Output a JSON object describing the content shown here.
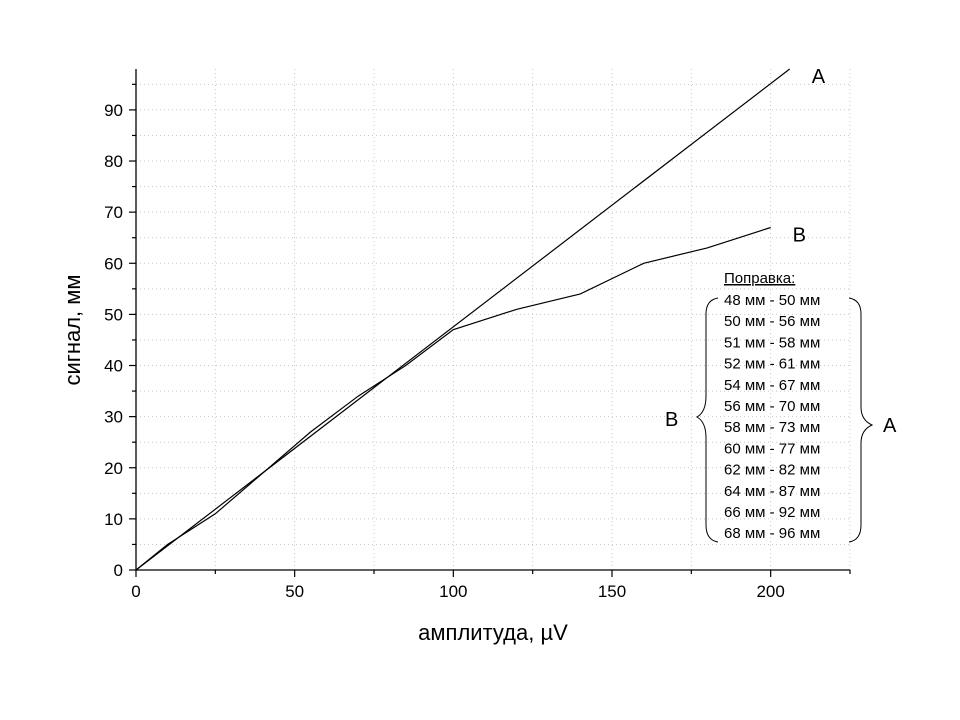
{
  "chart_data": {
    "type": "line",
    "xlabel": "амплитуда, µV",
    "ylabel": "сигнал, мм",
    "xlim": [
      0,
      225
    ],
    "ylim": [
      0,
      98
    ],
    "x_ticks": [
      0,
      50,
      100,
      150,
      200
    ],
    "y_ticks": [
      0,
      10,
      20,
      30,
      40,
      50,
      60,
      70,
      80,
      90
    ],
    "grid": true,
    "series": [
      {
        "name": "A",
        "x": [
          0,
          206
        ],
        "y": [
          0,
          98
        ]
      },
      {
        "name": "B",
        "x": [
          0,
          10,
          25,
          40,
          55,
          70,
          85,
          100,
          120,
          140,
          160,
          180,
          200
        ],
        "y": [
          0,
          5,
          11,
          19,
          27,
          34,
          40,
          47,
          51,
          54,
          60,
          63,
          67
        ]
      }
    ],
    "legend": {
      "title": "Поправка:",
      "rows": [
        "48 мм - 50 мм",
        "50 мм - 56 мм",
        "51 мм - 58 мм",
        "52 мм - 61 мм",
        "54 мм - 67 мм",
        "56 мм - 70 мм",
        "58 мм - 73 мм",
        "60 мм - 77 мм",
        "62 мм - 82 мм",
        "64 мм - 87 мм",
        "66 мм - 92 мм",
        "68 мм - 96 мм"
      ],
      "left_group_label": "B",
      "right_group_label": "A"
    }
  }
}
